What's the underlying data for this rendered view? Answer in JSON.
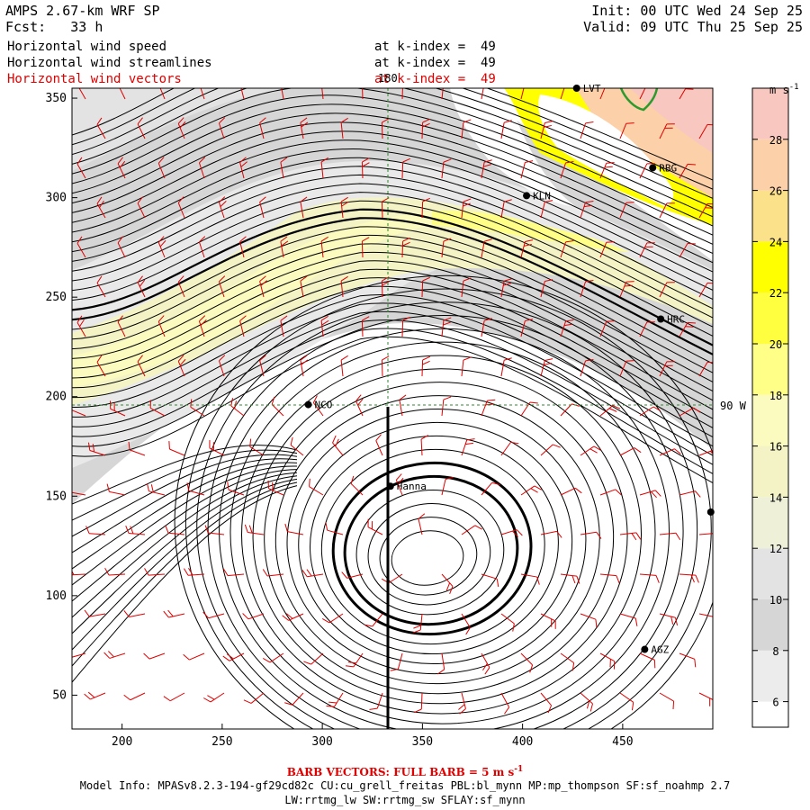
{
  "header": {
    "title": "AMPS 2.67-km WRF SP",
    "init": "Init: 00 UTC Wed 24 Sep 25",
    "fcst_label": "Fcst:",
    "fcst_value": "33 h",
    "valid": "Valid: 09 UTC Thu 25 Sep 25",
    "fields": [
      {
        "name": "Horizontal wind speed",
        "level": "at k-index =  49"
      },
      {
        "name": "Horizontal wind streamlines",
        "level": "at k-index =  49"
      },
      {
        "name": "Horizontal wind vectors",
        "level": "at k-index =  49"
      }
    ]
  },
  "axes": {
    "x_ticks": [
      "200",
      "250",
      "300",
      "350",
      "400",
      "450"
    ],
    "y_ticks": [
      "350",
      "300",
      "250",
      "200",
      "150",
      "100",
      "50"
    ],
    "xlim": [
      175,
      495
    ],
    "ylim": [
      33,
      355
    ]
  },
  "reference_lines": {
    "meridian_label": "180",
    "parallel_label": "90 W"
  },
  "stations": [
    {
      "id": "LVT",
      "x": 427,
      "y": 355
    },
    {
      "id": "RBG",
      "x": 465,
      "y": 315
    },
    {
      "id": "KLN",
      "x": 402,
      "y": 301
    },
    {
      "id": "HRC",
      "x": 469,
      "y": 239
    },
    {
      "id": "NCO",
      "x": 293,
      "y": 196
    },
    {
      "id": "Hanna",
      "x": 334,
      "y": 155
    },
    {
      "id": "",
      "x": 494,
      "y": 142
    },
    {
      "id": "AGZ",
      "x": 461,
      "y": 73
    }
  ],
  "colorbar": {
    "unit": "m s",
    "unit_exp": "-1",
    "ticks": [
      "28",
      "26",
      "24",
      "22",
      "20",
      "18",
      "16",
      "14",
      "12",
      "10",
      "8",
      "6"
    ],
    "levels": [
      {
        "from": 5,
        "to": 6,
        "color": "#ffffff"
      },
      {
        "from": 6,
        "to": 8,
        "color": "#ececec"
      },
      {
        "from": 8,
        "to": 10,
        "color": "#d6d6d6"
      },
      {
        "from": 10,
        "to": 12,
        "color": "#e3e3e3"
      },
      {
        "from": 12,
        "to": 14,
        "color": "#eef0d8"
      },
      {
        "from": 14,
        "to": 16,
        "color": "#f3f3c6"
      },
      {
        "from": 16,
        "to": 18,
        "color": "#fbfbbf"
      },
      {
        "from": 18,
        "to": 20,
        "color": "#ffff88"
      },
      {
        "from": 20,
        "to": 22,
        "color": "#ffff40"
      },
      {
        "from": 22,
        "to": 24,
        "color": "#ffff00"
      },
      {
        "from": 24,
        "to": 26,
        "color": "#fbe18a"
      },
      {
        "from": 26,
        "to": 28,
        "color": "#fcd0a8"
      },
      {
        "from": 28,
        "to": 30,
        "color": "#f8c8c0"
      }
    ]
  },
  "footer": {
    "barb_note": "BARB VECTORS: FULL BARB = 5 m s",
    "barb_exp": "-1",
    "model_info": "Model Info: MPASv8.2.3-194-gf29cd82c CU:cu_grell_freitas PBL:bl_mynn MP:mp_thompson SF:sf_noahmp 2.7",
    "physics": "LW:rrtmg_lw SW:rrtmg_sw SFLAY:sf_mynn"
  },
  "colors": {
    "streamline": "#000000",
    "barb": "#e00000",
    "reference_line": "#2c8a2c",
    "coast": "#2c9a2c"
  }
}
